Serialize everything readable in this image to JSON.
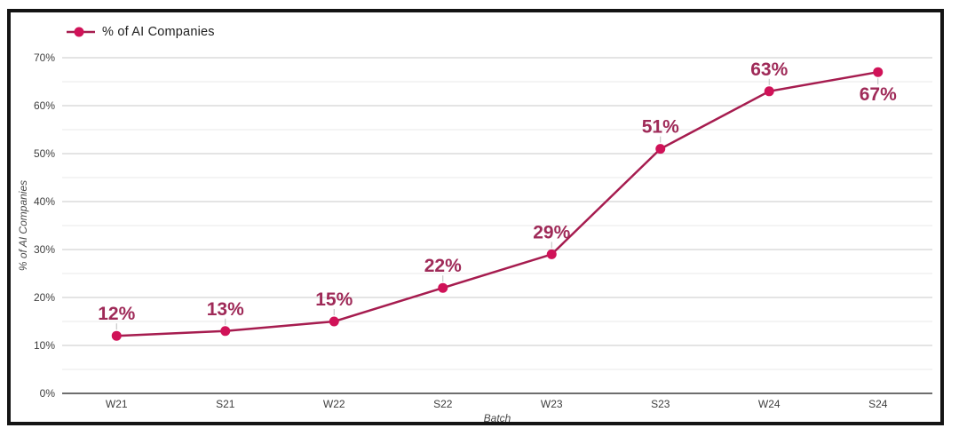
{
  "legend": {
    "label": "% of AI Companies"
  },
  "colors": {
    "line": "#a61c4f",
    "marker": "#d01258",
    "data_label": "#9f2a58",
    "legend_text": "#212121",
    "axis_text": "#3d3d3d",
    "axis_title": "#4a4a4a",
    "grid_major": "#c9c9c9",
    "grid_minor": "#e9e9e9",
    "axis_line": "#6e6e6e",
    "leader_line": "#bdbdbd",
    "frame": "#141414"
  },
  "chart_data": {
    "type": "line",
    "title": "",
    "categories": [
      "W21",
      "S21",
      "W22",
      "S22",
      "W23",
      "S23",
      "W24",
      "S24"
    ],
    "series": [
      {
        "name": "% of AI Companies",
        "values": [
          12,
          13,
          15,
          22,
          29,
          51,
          63,
          67
        ]
      }
    ],
    "data_labels": [
      "12%",
      "13%",
      "15%",
      "22%",
      "29%",
      "51%",
      "63%",
      "67%"
    ],
    "data_label_positions": [
      "above",
      "above",
      "above",
      "above",
      "above",
      "above",
      "above",
      "below"
    ],
    "xlabel": "Batch",
    "ylabel": "% of AI Companies",
    "ylim": [
      0,
      70
    ],
    "y_tick_step_labeled": 10,
    "y_grid_step": 5,
    "y_tick_labels": [
      "0%",
      "10%",
      "20%",
      "30%",
      "40%",
      "50%",
      "60%",
      "70%"
    ],
    "grid": "horizontal only",
    "legend_position": "top-left"
  }
}
